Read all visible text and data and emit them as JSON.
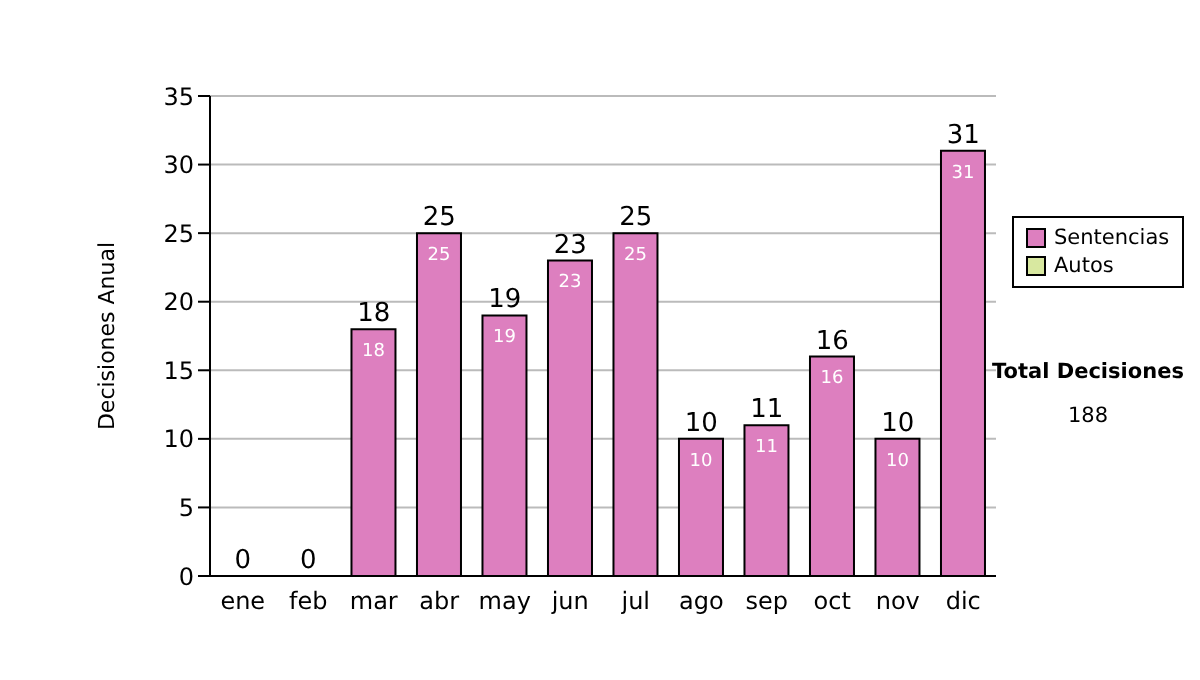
{
  "chart_data": {
    "type": "bar",
    "stacked": true,
    "ylabel": "Decisiones Anual",
    "categories": [
      "ene",
      "feb",
      "mar",
      "abr",
      "may",
      "jun",
      "jul",
      "ago",
      "sep",
      "oct",
      "nov",
      "dic"
    ],
    "series": [
      {
        "name": "Sentencias",
        "color": "#dd7fbf",
        "values": [
          0,
          0,
          18,
          25,
          19,
          23,
          25,
          10,
          11,
          16,
          10,
          31
        ],
        "value_labels": [
          null,
          null,
          "18",
          "25",
          "19",
          "23",
          "25",
          "10",
          "11",
          "16",
          "10",
          "31"
        ]
      },
      {
        "name": "Autos",
        "color": "#d8e8a0",
        "values": [
          0,
          0,
          0,
          0,
          0,
          0,
          0,
          0,
          0,
          0,
          0,
          0
        ]
      }
    ],
    "totals": [
      "0",
      "0",
      "18",
      "25",
      "19",
      "23",
      "25",
      "10",
      "11",
      "16",
      "10",
      "31"
    ],
    "ylim": [
      0,
      35
    ],
    "yticks": [
      0,
      5,
      10,
      15,
      20,
      25,
      30,
      35
    ],
    "grid": "y",
    "legend": "right",
    "annotations": [
      "Total Decisiones",
      "188"
    ]
  }
}
